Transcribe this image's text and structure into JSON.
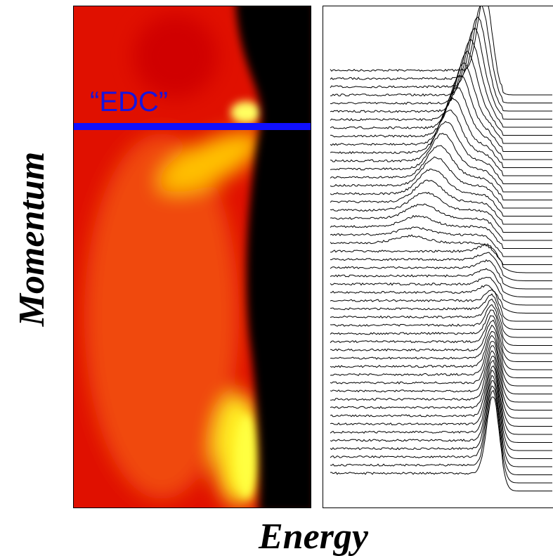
{
  "labels": {
    "y_axis": "Momentum",
    "x_axis": "Energy",
    "cut": "“EDC”"
  }
}
